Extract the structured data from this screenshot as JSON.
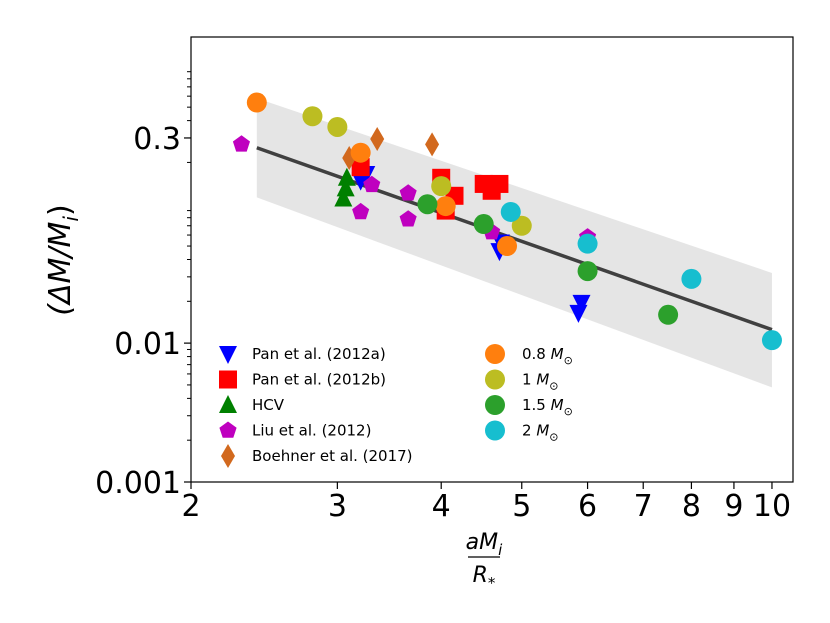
{
  "chart_data": {
    "type": "scatter",
    "x_scale": "log",
    "y_scale": "log",
    "xlim": [
      2,
      10.6
    ],
    "ylim": [
      0.001,
      1.6
    ],
    "xlabel_num": "aM",
    "xlabel_num_sub": "i",
    "xlabel_den": "R",
    "xlabel_den_sub": "*",
    "ylabel": "(ΔM/M",
    "ylabel_sub": "i",
    "ylabel_close": ")",
    "x_ticks": [
      {
        "value": 2,
        "label": "2"
      },
      {
        "value": 3,
        "label": "3"
      },
      {
        "value": 4,
        "label": "4"
      },
      {
        "value": 5,
        "label": "5"
      },
      {
        "value": 6,
        "label": "6"
      },
      {
        "value": 7,
        "label": "7"
      },
      {
        "value": 8,
        "label": "8"
      },
      {
        "value": 9,
        "label": "9"
      },
      {
        "value": 10,
        "label": "10"
      }
    ],
    "y_ticks": [
      {
        "value": 0.001,
        "label": "0.001"
      },
      {
        "value": 0.01,
        "label": "0.01"
      },
      {
        "value": 0.3,
        "label": "0.3"
      }
    ],
    "fit_line": {
      "x": [
        2.4,
        10
      ],
      "y": [
        0.255,
        0.0125
      ],
      "color": "#404040"
    },
    "band": {
      "x": [
        2.4,
        10
      ],
      "y_upper": [
        0.58,
        0.032
      ],
      "y_lower": [
        0.112,
        0.0048
      ],
      "color": "#d3d3d3"
    },
    "series": [
      {
        "name": "Pan et al. (2012a)",
        "marker": "triangle-down",
        "color": "#0000ff",
        "points": [
          [
            3.2,
            0.148
          ],
          [
            3.25,
            0.165
          ],
          [
            4.7,
            0.046
          ],
          [
            4.72,
            0.053
          ],
          [
            5.85,
            0.0165
          ],
          [
            5.9,
            0.0195
          ]
        ]
      },
      {
        "name": "Pan et al. (2012b)",
        "marker": "square",
        "color": "#ff0000",
        "points": [
          [
            3.2,
            0.185
          ],
          [
            4.0,
            0.155
          ],
          [
            4.05,
            0.09
          ],
          [
            4.15,
            0.115
          ],
          [
            4.5,
            0.14
          ],
          [
            4.6,
            0.125
          ],
          [
            4.7,
            0.14
          ]
        ]
      },
      {
        "name": "HCV",
        "marker": "triangle-up",
        "color": "#008000",
        "points": [
          [
            3.05,
            0.11
          ],
          [
            3.07,
            0.13
          ],
          [
            3.08,
            0.155
          ]
        ]
      },
      {
        "name": "Liu et al. (2012)",
        "marker": "pentagon",
        "color": "#bf00bf",
        "points": [
          [
            2.3,
            0.27
          ],
          [
            3.2,
            0.088
          ],
          [
            3.3,
            0.138
          ],
          [
            3.65,
            0.12
          ],
          [
            3.65,
            0.078
          ],
          [
            4.6,
            0.063
          ],
          [
            6.0,
            0.058
          ]
        ]
      },
      {
        "name": "Boehner et al. (2017)",
        "marker": "diamond",
        "color": "#d2691e",
        "points": [
          [
            3.1,
            0.215
          ],
          [
            3.35,
            0.295
          ],
          [
            3.9,
            0.27
          ]
        ]
      },
      {
        "name": "0.8 M☉",
        "marker": "circle",
        "color": "#ff7f0e",
        "points": [
          [
            2.4,
            0.54
          ],
          [
            3.2,
            0.235
          ],
          [
            4.05,
            0.097
          ],
          [
            4.8,
            0.05
          ]
        ]
      },
      {
        "name": "1 M☉",
        "marker": "circle",
        "color": "#bcbd22",
        "points": [
          [
            2.8,
            0.43
          ],
          [
            3.0,
            0.36
          ],
          [
            4.0,
            0.135
          ],
          [
            5.0,
            0.07
          ]
        ]
      },
      {
        "name": "1.5 M☉",
        "marker": "circle",
        "color": "#2ca02c",
        "points": [
          [
            3.85,
            0.1
          ],
          [
            4.5,
            0.072
          ],
          [
            6.0,
            0.033
          ],
          [
            7.5,
            0.016
          ]
        ]
      },
      {
        "name": "2 M☉",
        "marker": "circle",
        "color": "#17becf",
        "points": [
          [
            4.85,
            0.088
          ],
          [
            6.0,
            0.052
          ],
          [
            8.0,
            0.029
          ],
          [
            10.0,
            0.0105
          ]
        ]
      }
    ],
    "legend": {
      "placement": "lower-left",
      "columns": [
        [
          {
            "text": "Pan et al. (2012a)"
          },
          {
            "text": "Pan et al. (2012b)"
          },
          {
            "text": "HCV"
          },
          {
            "text": "Liu et al. (2012)"
          },
          {
            "text": "Boehner et al. (2017)"
          }
        ],
        [
          {
            "text": "0.8 M",
            "sub": "⊙"
          },
          {
            "text": "1 M",
            "sub": "⊙"
          },
          {
            "text": "1.5 M",
            "sub": "⊙"
          },
          {
            "text": "2 M",
            "sub": "⊙"
          }
        ]
      ]
    }
  }
}
